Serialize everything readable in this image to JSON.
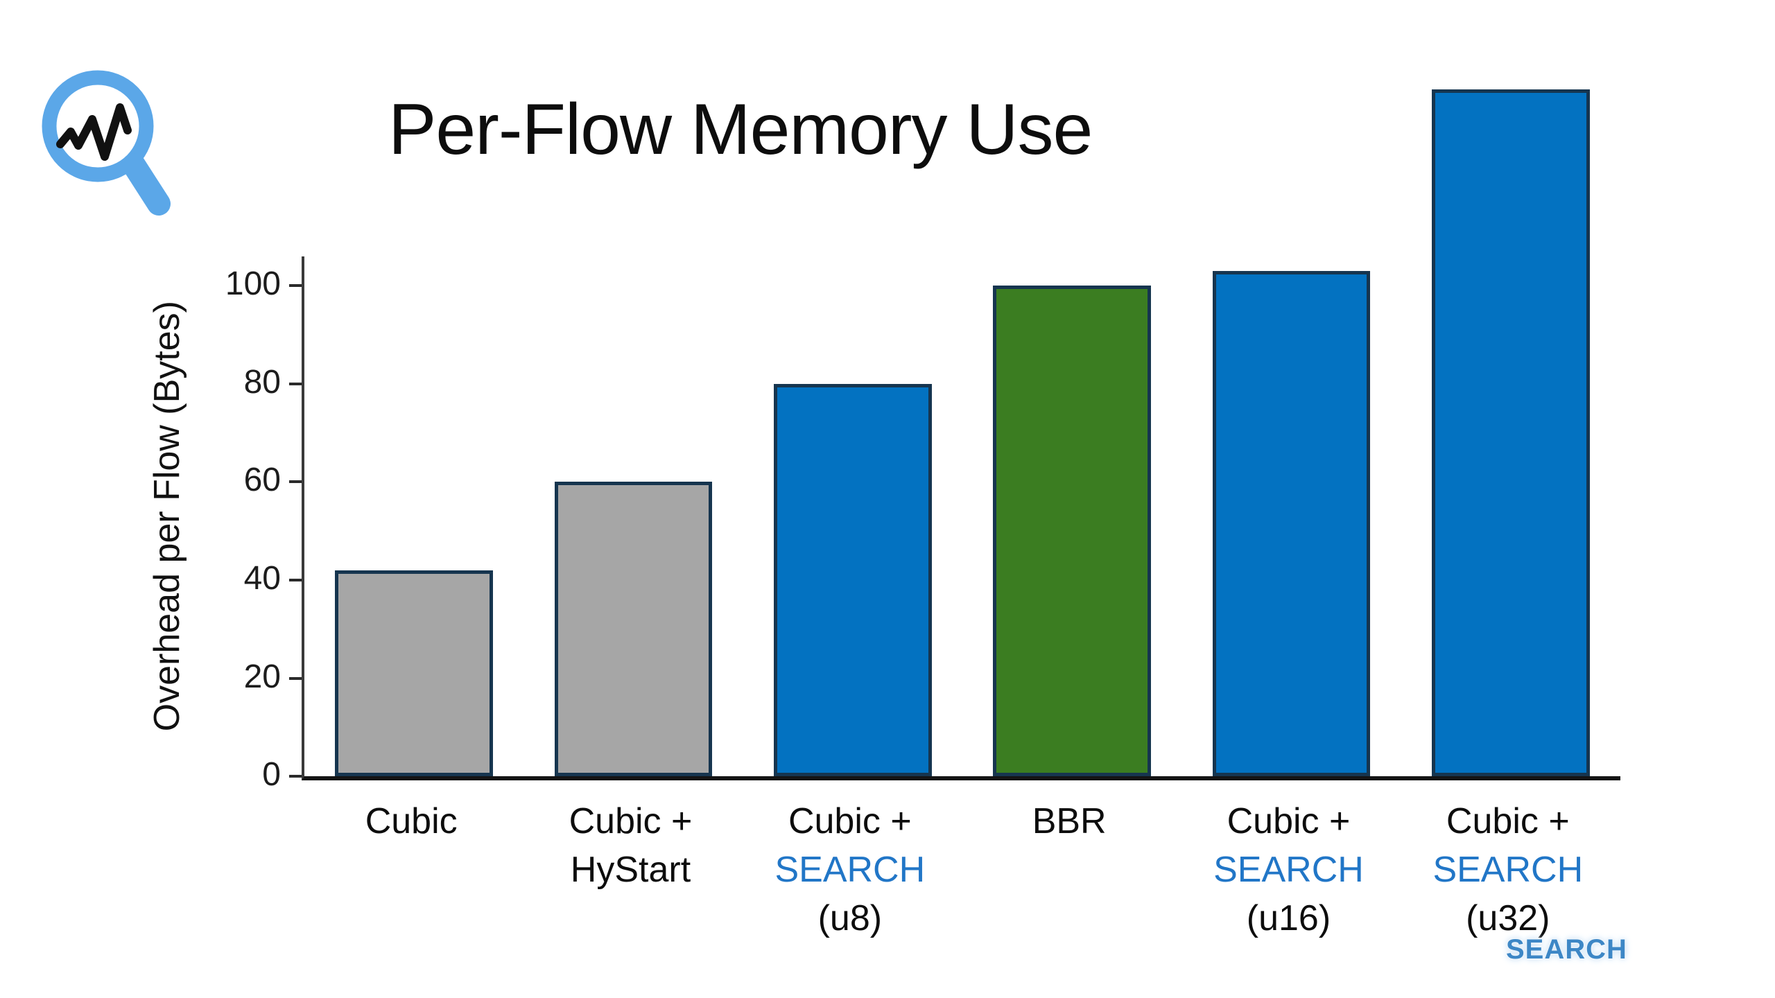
{
  "title": "Per-Flow Memory Use",
  "watermark": "SEARCH",
  "logo": {
    "icon": "magnifier-waveform-logo",
    "ring_color": "#5ba7e8",
    "waveform_color": "#111111"
  },
  "chart_data": {
    "type": "bar",
    "title": "Per-Flow Memory Use",
    "xlabel": "",
    "ylabel": "Overhead per Flow (Bytes)",
    "ylim": [
      0,
      106
    ],
    "yticks": [
      0,
      20,
      40,
      60,
      80,
      100
    ],
    "grid": false,
    "legend": "none",
    "categories": [
      "Cubic",
      "Cubic + HyStart",
      "Cubic + SEARCH (u8)",
      "BBR",
      "Cubic + SEARCH (u16)",
      "Cubic + SEARCH (u32)"
    ],
    "values": [
      42,
      60,
      80,
      100,
      103,
      140
    ],
    "bar_colors": [
      "#a6a6a6",
      "#a6a6a6",
      "#0372c1",
      "#3b7d21",
      "#0372c1",
      "#0372c1"
    ],
    "bar_edge_color": "#16354f",
    "axis_color": "#141414",
    "tick_label_color": "#1c1c1c",
    "accent_color": "#2176c7",
    "label_lines": [
      [
        {
          "text": "Cubic",
          "accent": false
        }
      ],
      [
        {
          "text": "Cubic +",
          "accent": false
        },
        {
          "text": "HyStart",
          "accent": false
        }
      ],
      [
        {
          "text": "Cubic +",
          "accent": false
        },
        {
          "text": "SEARCH",
          "accent": true
        },
        {
          "text": "(u8)",
          "accent": false
        }
      ],
      [
        {
          "text": "BBR",
          "accent": false
        }
      ],
      [
        {
          "text": "Cubic +",
          "accent": false
        },
        {
          "text": "SEARCH",
          "accent": true
        },
        {
          "text": "(u16)",
          "accent": false
        }
      ],
      [
        {
          "text": "Cubic +",
          "accent": false
        },
        {
          "text": "SEARCH",
          "accent": true
        },
        {
          "text": "(u32)",
          "accent": false
        }
      ]
    ]
  }
}
